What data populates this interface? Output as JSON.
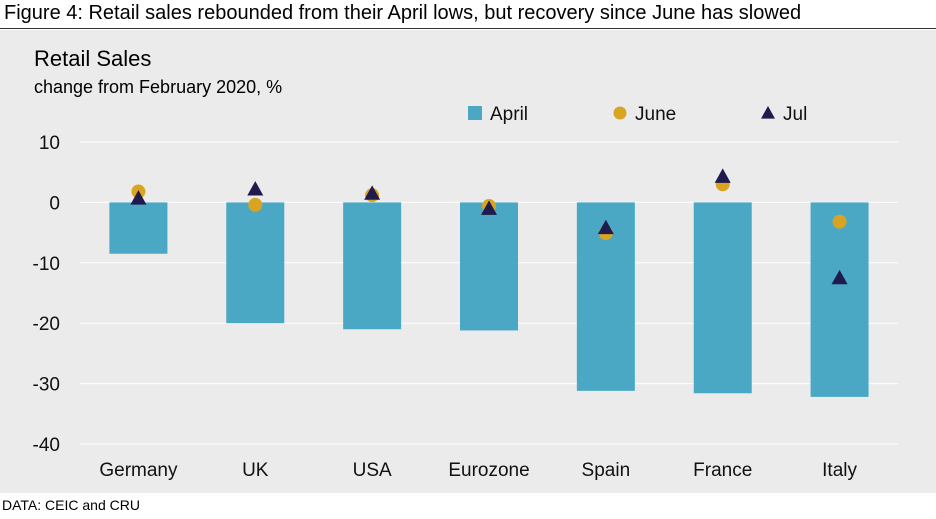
{
  "figure_caption": "Figure 4: Retail sales rebounded from their April lows, but recovery since June has slowed",
  "source": "DATA: CEIC and CRU",
  "colors": {
    "april": "#4aa8c4",
    "june": "#d9a520",
    "jul": "#1f1b4d",
    "panel": "#ebebeb",
    "grid": "#ffffff"
  },
  "chart_data": {
    "type": "bar",
    "title": "Retail Sales",
    "subtitle": "change from February 2020, %",
    "xlabel": "",
    "ylabel": "",
    "ylim": [
      -40,
      10
    ],
    "yticks": [
      10,
      0,
      -10,
      -20,
      -30,
      -40
    ],
    "grid": true,
    "legend_position": "top-right",
    "categories": [
      "Germany",
      "UK",
      "USA",
      "Eurozone",
      "Spain",
      "France",
      "Italy"
    ],
    "series": [
      {
        "name": "April",
        "kind": "bar",
        "marker": "square",
        "values": [
          -8.5,
          -20,
          -21,
          -21.2,
          -31.2,
          -31.6,
          -32.2
        ]
      },
      {
        "name": "June",
        "kind": "scatter",
        "marker": "circle",
        "values": [
          1.8,
          -0.4,
          1.2,
          -0.6,
          -5.1,
          3.0,
          -3.2
        ]
      },
      {
        "name": "Jul",
        "kind": "scatter",
        "marker": "triangle",
        "values": [
          0.7,
          2.2,
          1.5,
          -1.0,
          -4.2,
          4.3,
          -12.5
        ]
      }
    ]
  }
}
